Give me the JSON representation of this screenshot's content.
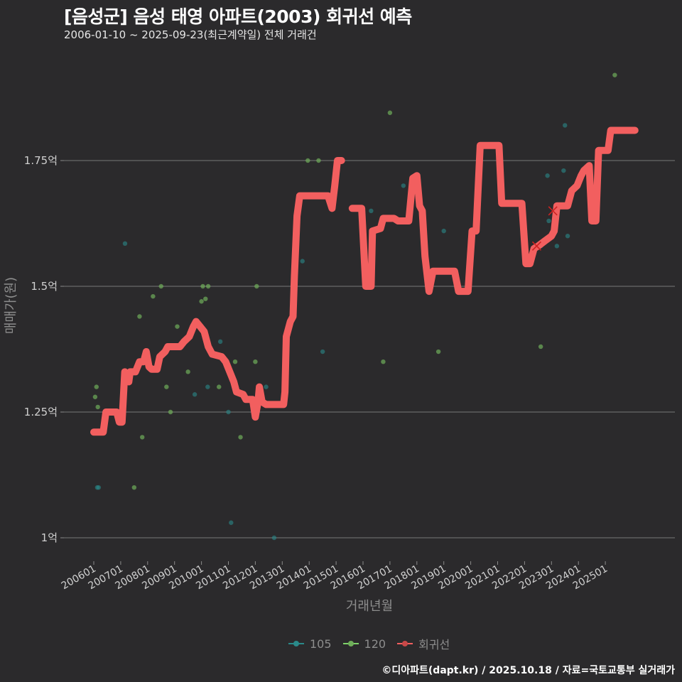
{
  "header": {
    "title": "[음성군] 음성 태영 아파트(2003) 회귀선 예측",
    "subtitle": "2006-01-10 ~ 2025-09-23(최근계약일) 전체 거래건"
  },
  "footer": {
    "credit": "©디아파트(dapt.kr) / 2025.10.18 / 자료=국토교통부 실거래가"
  },
  "legend": {
    "items": [
      {
        "label": "105",
        "color": "#2a8a8a"
      },
      {
        "label": "120",
        "color": "#7ed36a"
      },
      {
        "label": "회귀선",
        "color": "#f25f5f"
      }
    ]
  },
  "colors": {
    "background": "#2b2a2c",
    "grid": "#5e5e5e",
    "s105": "#2a8a8a",
    "s120": "#6fae5a",
    "regression": "#f25f5f",
    "marker_x": "#cc2222"
  },
  "chart_data": {
    "type": "scatter",
    "title": "[음성군] 음성 태영 아파트(2003) 회귀선 예측",
    "subtitle": "2006-01-10 ~ 2025-09-23(최근계약일) 전체 거래건",
    "xlabel": "거래년월",
    "ylabel": "매매가(원)",
    "ylim": [
      0.95,
      1.95
    ],
    "yticks": [
      {
        "value": 1.0,
        "label": "1억"
      },
      {
        "value": 1.25,
        "label": "1.25억"
      },
      {
        "value": 1.5,
        "label": "1.5억"
      },
      {
        "value": 1.75,
        "label": "1.75억"
      }
    ],
    "xticks": [
      "200601",
      "200701",
      "200801",
      "200901",
      "201001",
      "201101",
      "201201",
      "201301",
      "201401",
      "201501",
      "201601",
      "201701",
      "201801",
      "201901",
      "202001",
      "202101",
      "202201",
      "202301",
      "202401",
      "202501"
    ],
    "grid": true,
    "legend_position": "bottom",
    "series": [
      {
        "name": "105",
        "type": "scatter",
        "points": [
          [
            2006.13,
            1.1
          ],
          [
            2006.18,
            1.1
          ],
          [
            2007.16,
            1.585
          ],
          [
            2009.75,
            1.285
          ],
          [
            2010.23,
            1.3
          ],
          [
            2010.7,
            1.39
          ],
          [
            2011.0,
            1.25
          ],
          [
            2011.1,
            1.03
          ],
          [
            2012.4,
            1.3
          ],
          [
            2012.7,
            1.0
          ],
          [
            2013.75,
            1.55
          ],
          [
            2014.5,
            1.37
          ],
          [
            2016.3,
            1.65
          ],
          [
            2017.5,
            1.7
          ],
          [
            2018.3,
            1.6
          ],
          [
            2019.0,
            1.61
          ],
          [
            2022.6,
            1.58
          ],
          [
            2022.85,
            1.72
          ],
          [
            2022.9,
            1.63
          ],
          [
            2023.45,
            1.73
          ],
          [
            2023.5,
            1.82
          ],
          [
            2023.6,
            1.6
          ],
          [
            2023.2,
            1.58
          ]
        ]
      },
      {
        "name": "120",
        "type": "scatter",
        "points": [
          [
            2006.05,
            1.28
          ],
          [
            2006.1,
            1.3
          ],
          [
            2006.15,
            1.26
          ],
          [
            2007.5,
            1.1
          ],
          [
            2007.7,
            1.44
          ],
          [
            2007.8,
            1.2
          ],
          [
            2008.2,
            1.48
          ],
          [
            2008.5,
            1.5
          ],
          [
            2008.7,
            1.3
          ],
          [
            2008.85,
            1.25
          ],
          [
            2009.1,
            1.42
          ],
          [
            2009.5,
            1.33
          ],
          [
            2010.0,
            1.47
          ],
          [
            2010.05,
            1.5
          ],
          [
            2010.15,
            1.475
          ],
          [
            2010.25,
            1.5
          ],
          [
            2010.65,
            1.3
          ],
          [
            2011.25,
            1.35
          ],
          [
            2011.45,
            1.2
          ],
          [
            2012.0,
            1.35
          ],
          [
            2012.05,
            1.5
          ],
          [
            2013.95,
            1.75
          ],
          [
            2014.35,
            1.75
          ],
          [
            2016.75,
            1.35
          ],
          [
            2017.0,
            1.845
          ],
          [
            2018.8,
            1.37
          ],
          [
            2022.6,
            1.38
          ],
          [
            2025.35,
            1.92
          ]
        ]
      },
      {
        "name": "회귀선",
        "type": "line",
        "points": [
          [
            2006.0,
            1.21
          ],
          [
            2006.35,
            1.21
          ],
          [
            2006.45,
            1.25
          ],
          [
            2006.85,
            1.25
          ],
          [
            2006.95,
            1.23
          ],
          [
            2007.05,
            1.23
          ],
          [
            2007.15,
            1.33
          ],
          [
            2007.3,
            1.31
          ],
          [
            2007.35,
            1.33
          ],
          [
            2007.55,
            1.33
          ],
          [
            2007.7,
            1.35
          ],
          [
            2007.85,
            1.35
          ],
          [
            2007.95,
            1.37
          ],
          [
            2008.05,
            1.34
          ],
          [
            2008.15,
            1.335
          ],
          [
            2008.35,
            1.335
          ],
          [
            2008.45,
            1.36
          ],
          [
            2008.65,
            1.37
          ],
          [
            2008.75,
            1.38
          ],
          [
            2009.2,
            1.38
          ],
          [
            2009.35,
            1.39
          ],
          [
            2009.55,
            1.4
          ],
          [
            2009.7,
            1.42
          ],
          [
            2009.8,
            1.43
          ],
          [
            2009.95,
            1.42
          ],
          [
            2010.1,
            1.41
          ],
          [
            2010.25,
            1.38
          ],
          [
            2010.4,
            1.365
          ],
          [
            2010.75,
            1.36
          ],
          [
            2010.9,
            1.35
          ],
          [
            2011.05,
            1.33
          ],
          [
            2011.2,
            1.31
          ],
          [
            2011.3,
            1.29
          ],
          [
            2011.55,
            1.285
          ],
          [
            2011.65,
            1.275
          ],
          [
            2011.9,
            1.275
          ],
          [
            2012.0,
            1.24
          ],
          [
            2012.1,
            1.27
          ],
          [
            2012.15,
            1.3
          ],
          [
            2012.25,
            1.27
          ],
          [
            2012.4,
            1.265
          ],
          [
            2013.05,
            1.265
          ],
          [
            2013.1,
            1.29
          ],
          [
            2013.15,
            1.4
          ],
          [
            2013.3,
            1.43
          ],
          [
            2013.4,
            1.44
          ],
          [
            2013.45,
            1.52
          ],
          [
            2013.55,
            1.64
          ],
          [
            2013.65,
            1.68
          ],
          [
            2014.7,
            1.68
          ],
          [
            2014.85,
            1.655
          ],
          [
            2014.95,
            1.7
          ],
          [
            2015.05,
            1.75
          ],
          [
            2015.2,
            1.75
          ],
          null,
          [
            2015.6,
            1.655
          ],
          [
            2015.95,
            1.655
          ],
          [
            2016.1,
            1.5
          ],
          [
            2016.3,
            1.5
          ],
          [
            2016.35,
            1.61
          ],
          [
            2016.65,
            1.615
          ],
          [
            2016.75,
            1.635
          ],
          [
            2017.15,
            1.635
          ],
          [
            2017.3,
            1.63
          ],
          [
            2017.7,
            1.63
          ],
          [
            2017.85,
            1.715
          ],
          [
            2018.0,
            1.72
          ],
          [
            2018.1,
            1.66
          ],
          [
            2018.2,
            1.65
          ],
          [
            2018.3,
            1.56
          ],
          [
            2018.45,
            1.49
          ],
          [
            2018.6,
            1.53
          ],
          [
            2019.4,
            1.53
          ],
          [
            2019.55,
            1.49
          ],
          [
            2019.9,
            1.49
          ],
          [
            2020.05,
            1.61
          ],
          [
            2020.2,
            1.61
          ],
          [
            2020.35,
            1.78
          ],
          [
            2021.05,
            1.78
          ],
          [
            2021.15,
            1.665
          ],
          [
            2021.9,
            1.665
          ],
          [
            2022.05,
            1.545
          ],
          [
            2022.2,
            1.545
          ],
          [
            2022.35,
            1.575
          ],
          [
            2022.5,
            1.58
          ],
          [
            2022.75,
            1.59
          ],
          [
            2023.0,
            1.6
          ],
          [
            2023.1,
            1.61
          ],
          [
            2023.2,
            1.66
          ],
          [
            2023.6,
            1.66
          ],
          [
            2023.75,
            1.69
          ],
          [
            2023.95,
            1.7
          ],
          [
            2024.1,
            1.72
          ],
          [
            2024.2,
            1.73
          ],
          [
            2024.4,
            1.74
          ],
          [
            2024.5,
            1.63
          ],
          [
            2024.65,
            1.63
          ],
          [
            2024.75,
            1.77
          ],
          [
            2024.9,
            1.77
          ],
          [
            2025.1,
            1.77
          ],
          [
            2025.2,
            1.81
          ],
          [
            2026.1,
            1.81
          ]
        ]
      }
    ],
    "markers_x": [
      [
        2022.45,
        1.58
      ],
      [
        2023.05,
        1.65
      ]
    ]
  },
  "axes": {
    "x_title": "거래년월",
    "y_title": "매매가(원)"
  }
}
